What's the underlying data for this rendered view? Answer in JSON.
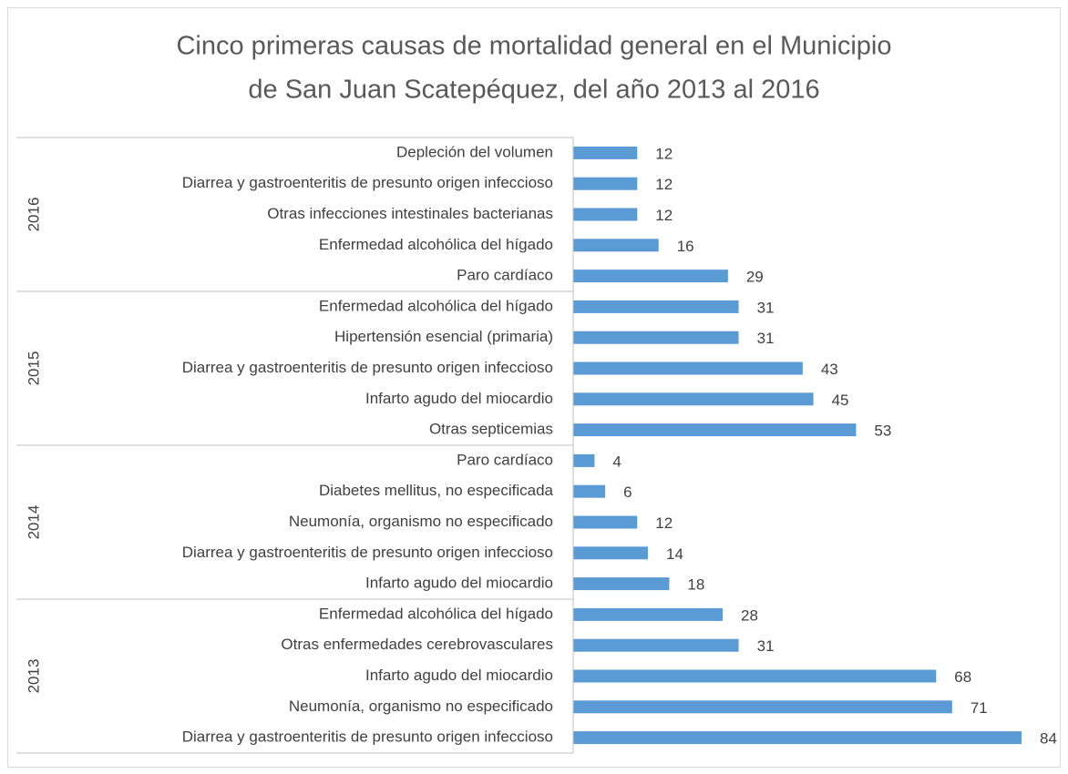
{
  "chart_data": {
    "type": "bar",
    "title": [
      "Cinco primeras causas de mortalidad general en el Municipio",
      "de San Juan Scatepéquez, del año 2013 al 2016"
    ],
    "color": "#5b9bd5",
    "groups": [
      {
        "name": "2016",
        "categories": [
          "Depleción del volumen",
          "Diarrea y gastroenteritis de presunto origen infeccioso",
          "Otras infecciones intestinales bacterianas",
          "Enfermedad alcohólica del hígado",
          "Paro cardíaco"
        ],
        "values": [
          12,
          12,
          12,
          16,
          29
        ]
      },
      {
        "name": "2015",
        "categories": [
          "Enfermedad alcohólica del hígado",
          "Hipertensión esencial (primaria)",
          "Diarrea y gastroenteritis de presunto origen infeccioso",
          "Infarto agudo del miocardio",
          "Otras septicemias"
        ],
        "values": [
          31,
          31,
          43,
          45,
          53
        ]
      },
      {
        "name": "2014",
        "categories": [
          "Paro cardíaco",
          "Diabetes mellitus, no especificada",
          "Neumonía, organismo no especificado",
          "Diarrea y gastroenteritis de presunto origen infeccioso",
          "Infarto agudo del miocardio"
        ],
        "values": [
          4,
          6,
          12,
          14,
          18
        ]
      },
      {
        "name": "2013",
        "categories": [
          "Enfermedad alcohólica del hígado",
          "Otras enfermedades cerebrovasculares",
          "Infarto agudo del miocardio",
          "Neumonía, organismo no especificado",
          "Diarrea y gastroenteritis de presunto origen infeccioso"
        ],
        "values": [
          28,
          31,
          68,
          71,
          84
        ]
      }
    ]
  }
}
